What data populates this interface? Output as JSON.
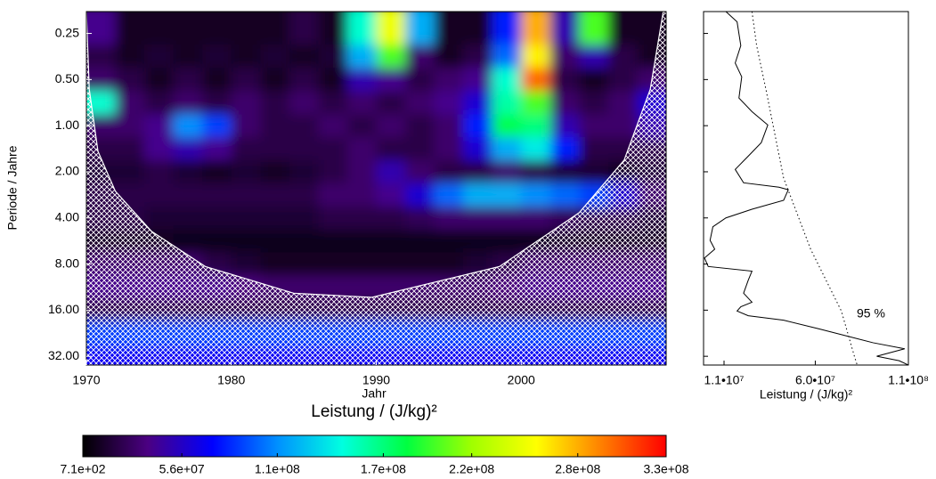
{
  "chart_data": [
    {
      "type": "heatmap",
      "xlabel": "Jahr",
      "ylabel": "Periode / Jahre",
      "xlim": [
        1970,
        2010
      ],
      "xticks": [
        1970,
        1980,
        1990,
        2000
      ],
      "ylim": [
        0.18,
        36.5
      ],
      "ylog": true,
      "yticks": [
        0.25,
        {
          "value": 0.5,
          "label": "0.50"
        },
        {
          "value": 1,
          "label": "1.00"
        },
        {
          "value": 2,
          "label": "2.00"
        },
        {
          "value": 4,
          "label": "4.00"
        },
        {
          "value": 8,
          "label": "8.00"
        },
        {
          "value": 16,
          "label": "16.00"
        },
        {
          "value": 32,
          "label": "32.00"
        }
      ],
      "x": [
        1971,
        1973,
        1975,
        1977,
        1979,
        1981,
        1983,
        1985,
        1987,
        1989,
        1991,
        1993,
        1995,
        1997,
        1999,
        2001,
        2003,
        2005,
        2007,
        2009
      ],
      "y": [
        0.25,
        0.35,
        0.5,
        0.71,
        1,
        1.41,
        2,
        2.83,
        4,
        5.66,
        8,
        11.3,
        16,
        22.6,
        32
      ],
      "z": [
        [
          40000000.0,
          10000000.0,
          10000000.0,
          10000000.0,
          10000000.0,
          10000000.0,
          10000000.0,
          20000000.0,
          10000000.0,
          150000000.0,
          250000000.0,
          120000000.0,
          10000000.0,
          10000000.0,
          80000000.0,
          280000000.0,
          50000000.0,
          200000000.0,
          10000000.0,
          10000000.0
        ],
        [
          20000000.0,
          10000000.0,
          15000000.0,
          10000000.0,
          15000000.0,
          10000000.0,
          15000000.0,
          10000000.0,
          15000000.0,
          120000000.0,
          200000000.0,
          30000000.0,
          10000000.0,
          20000000.0,
          100000000.0,
          260000000.0,
          30000000.0,
          50000000.0,
          20000000.0,
          10000000.0
        ],
        [
          30000000.0,
          20000000.0,
          10000000.0,
          20000000.0,
          10000000.0,
          20000000.0,
          10000000.0,
          20000000.0,
          10000000.0,
          50000000.0,
          40000000.0,
          20000000.0,
          30000000.0,
          40000000.0,
          150000000.0,
          300000000.0,
          20000000.0,
          10000000.0,
          20000000.0,
          30000000.0
        ],
        [
          150000000.0,
          30000000.0,
          20000000.0,
          30000000.0,
          20000000.0,
          30000000.0,
          20000000.0,
          30000000.0,
          20000000.0,
          30000000.0,
          20000000.0,
          30000000.0,
          40000000.0,
          60000000.0,
          160000000.0,
          200000000.0,
          30000000.0,
          20000000.0,
          30000000.0,
          60000000.0
        ],
        [
          30000000.0,
          30000000.0,
          40000000.0,
          110000000.0,
          90000000.0,
          30000000.0,
          20000000.0,
          20000000.0,
          30000000.0,
          20000000.0,
          30000000.0,
          20000000.0,
          30000000.0,
          80000000.0,
          180000000.0,
          170000000.0,
          50000000.0,
          30000000.0,
          30000000.0,
          50000000.0
        ],
        [
          20000000.0,
          20000000.0,
          40000000.0,
          50000000.0,
          40000000.0,
          20000000.0,
          20000000.0,
          20000000.0,
          20000000.0,
          30000000.0,
          20000000.0,
          20000000.0,
          30000000.0,
          60000000.0,
          120000000.0,
          140000000.0,
          80000000.0,
          20000000.0,
          20000000.0,
          20000000.0
        ],
        [
          15000000.0,
          15000000.0,
          20000000.0,
          15000000.0,
          10000000.0,
          15000000.0,
          10000000.0,
          15000000.0,
          20000000.0,
          30000000.0,
          50000000.0,
          30000000.0,
          20000000.0,
          20000000.0,
          30000000.0,
          20000000.0,
          15000000.0,
          15000000.0,
          10000000.0,
          15000000.0
        ],
        [
          20000000.0,
          20000000.0,
          20000000.0,
          20000000.0,
          20000000.0,
          20000000.0,
          20000000.0,
          20000000.0,
          30000000.0,
          30000000.0,
          40000000.0,
          60000000.0,
          100000000.0,
          120000000.0,
          120000000.0,
          110000000.0,
          100000000.0,
          90000000.0,
          60000000.0,
          30000000.0
        ],
        [
          20000000.0,
          20000000.0,
          15000000.0,
          15000000.0,
          15000000.0,
          15000000.0,
          15000000.0,
          15000000.0,
          20000000.0,
          20000000.0,
          20000000.0,
          25000000.0,
          30000000.0,
          30000000.0,
          30000000.0,
          30000000.0,
          25000000.0,
          20000000.0,
          20000000.0,
          15000000.0
        ],
        [
          10000000.0,
          10000000.0,
          10000000.0,
          8000000.0,
          8000000.0,
          8000000.0,
          8000000.0,
          8000000.0,
          8000000.0,
          8000000.0,
          8000000.0,
          8000000.0,
          8000000.0,
          8000000.0,
          8000000.0,
          8000000.0,
          10000000.0,
          10000000.0,
          10000000.0,
          10000000.0
        ],
        [
          30000000.0,
          30000000.0,
          30000000.0,
          30000000.0,
          20000000.0,
          15000000.0,
          10000000.0,
          10000000.0,
          10000000.0,
          10000000.0,
          10000000.0,
          10000000.0,
          10000000.0,
          15000000.0,
          20000000.0,
          30000000.0,
          30000000.0,
          30000000.0,
          30000000.0,
          30000000.0
        ],
        [
          40000000.0,
          40000000.0,
          40000000.0,
          40000000.0,
          40000000.0,
          35000000.0,
          30000000.0,
          30000000.0,
          30000000.0,
          30000000.0,
          30000000.0,
          30000000.0,
          30000000.0,
          30000000.0,
          35000000.0,
          40000000.0,
          40000000.0,
          40000000.0,
          40000000.0,
          40000000.0
        ],
        [
          20000000.0,
          20000000.0,
          20000000.0,
          20000000.0,
          20000000.0,
          20000000.0,
          20000000.0,
          20000000.0,
          20000000.0,
          20000000.0,
          20000000.0,
          20000000.0,
          20000000.0,
          20000000.0,
          20000000.0,
          20000000.0,
          20000000.0,
          20000000.0,
          20000000.0,
          20000000.0
        ],
        [
          90000000.0,
          90000000.0,
          90000000.0,
          90000000.0,
          90000000.0,
          90000000.0,
          90000000.0,
          90000000.0,
          90000000.0,
          90000000.0,
          90000000.0,
          90000000.0,
          90000000.0,
          90000000.0,
          90000000.0,
          90000000.0,
          90000000.0,
          90000000.0,
          90000000.0,
          90000000.0
        ],
        [
          70000000.0,
          70000000.0,
          70000000.0,
          70000000.0,
          70000000.0,
          70000000.0,
          70000000.0,
          70000000.0,
          70000000.0,
          70000000.0,
          70000000.0,
          70000000.0,
          70000000.0,
          70000000.0,
          70000000.0,
          70000000.0,
          70000000.0,
          70000000.0,
          70000000.0,
          70000000.0
        ]
      ],
      "cone": {
        "x": [
          1970,
          1970.2,
          1970.8,
          1972,
          1974.5,
          1978.2,
          1984.3,
          1989.7,
          1998.5,
          2004,
          2007.1,
          2008.9,
          2009.8
        ],
        "y": [
          0.18,
          0.58,
          1.47,
          2.68,
          4.9,
          8.3,
          12.4,
          13.2,
          8.3,
          3.7,
          1.68,
          0.58,
          0.18
        ]
      },
      "colorscale": [
        "#000000",
        "#4b0082",
        "#0000ff",
        "#0090ff",
        "#00ffe0",
        "#00ff40",
        "#a0ff00",
        "#ffff00",
        "#ff8000",
        "#ff0000"
      ],
      "colorbar": {
        "title": "Leistung / (J/kg)²",
        "lim": [
          710,
          330000000
        ],
        "ticks": [
          {
            "value": 710,
            "label": "7.1e+02"
          },
          {
            "value": 56000000,
            "label": "5.6e+07"
          },
          {
            "value": 110000000,
            "label": "1.1e+08"
          },
          {
            "value": 170000000,
            "label": "1.7e+08"
          },
          {
            "value": 220000000,
            "label": "2.2e+08"
          },
          {
            "value": 280000000,
            "label": "2.8e+08"
          },
          {
            "value": 330000000,
            "label": "3.3e+08"
          }
        ]
      }
    },
    {
      "type": "line",
      "xlabel": "Leistung / (J/kg)²",
      "xlim": [
        0,
        110000000
      ],
      "xticks": [
        {
          "value": 11000000,
          "label": "1.1•10⁷"
        },
        {
          "value": 60000000,
          "label": "6.0•10⁷"
        },
        {
          "value": 110000000,
          "label": "1.1•10⁸"
        }
      ],
      "ylim": [
        0.18,
        36.5
      ],
      "ylog": true,
      "yticks": [
        0.25,
        0.5,
        1,
        2,
        4,
        8,
        16,
        32
      ],
      "series": [
        {
          "color": "#000000",
          "style": "solid",
          "y": [
            0.18,
            0.21,
            0.3,
            0.39,
            0.48,
            0.66,
            0.81,
            0.99,
            1.29,
            1.58,
            1.93,
            2.36,
            2.52,
            2.62,
            3.07,
            3.51,
            4.0,
            4.57,
            5.6,
            6.4,
            7.3,
            8.3,
            8.9,
            10.2,
            12.4,
            14.2,
            15.2,
            16.2,
            17.4,
            18.6,
            21.2,
            26.1,
            28.6,
            32,
            34.2,
            36.5
          ],
          "values": [
            12000000.0,
            18000000.0,
            20000000.0,
            17000000.0,
            20500000.0,
            19000000.0,
            26000000.0,
            34500000.0,
            31000000.0,
            24000000.0,
            17000000.0,
            21500000.0,
            40500000.0,
            45500000.0,
            43000000.0,
            26000000.0,
            12000000.0,
            5000000.0,
            3500000.0,
            6000000.0,
            500000.0,
            2500000.0,
            26000000.0,
            24000000.0,
            21500000.0,
            26000000.0,
            20000000.0,
            18000000.0,
            24000000.0,
            43000000.0,
            62000000.0,
            91000000.0,
            108000000.0,
            93000000.0,
            105000000.0,
            110000000.0
          ]
        },
        {
          "color": "#000000",
          "style": "dotted",
          "y": [
            0.18,
            0.3,
            0.58,
            2.2,
            6.4,
            16.2,
            32,
            36.5
          ],
          "values": [
            26000000.0,
            28500000.0,
            33500000.0,
            43000000.0,
            57500000.0,
            74000000.0,
            81000000.0,
            82500000.0
          ]
        }
      ],
      "annotation": "95 %"
    }
  ]
}
